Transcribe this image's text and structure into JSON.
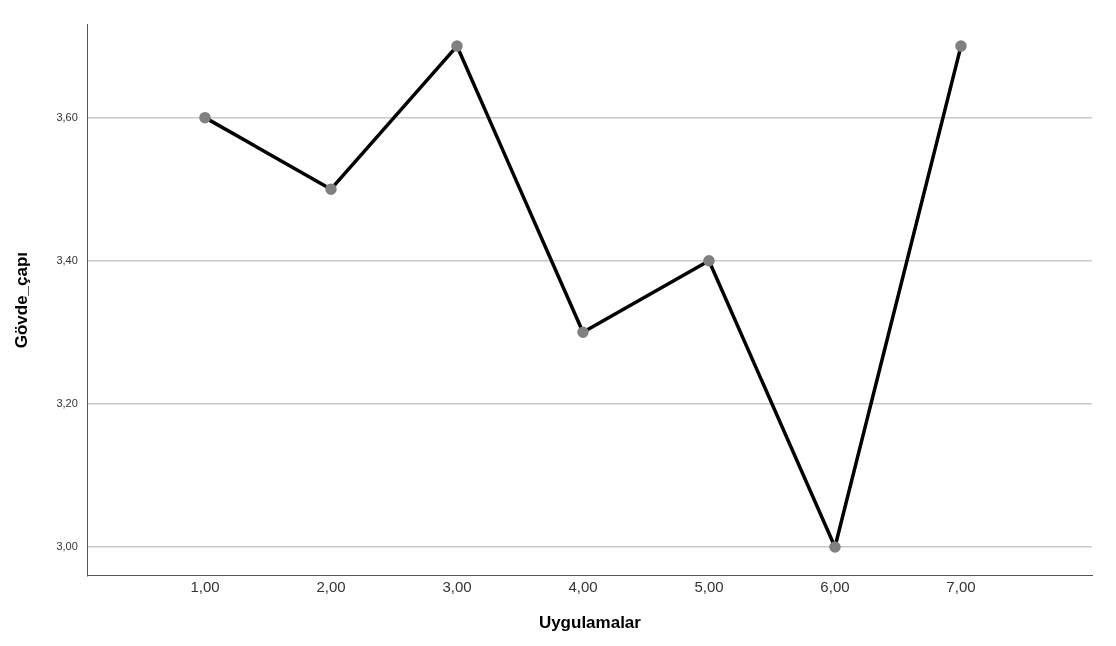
{
  "chart_data": {
    "type": "line",
    "xlabel": "Uygulamalar",
    "ylabel": "Gövde_çapı",
    "x": [
      1,
      2,
      3,
      4,
      5,
      6,
      7
    ],
    "series": [
      {
        "color": "#000000",
        "values": [
          3.6,
          3.5,
          3.7,
          3.3,
          3.4,
          3.0,
          3.7
        ]
      }
    ],
    "xlim": [
      0.07,
      8.04
    ],
    "ylim": [
      2.96,
      3.73
    ],
    "xticks": [
      {
        "value": 1,
        "label": "1,00"
      },
      {
        "value": 2,
        "label": "2,00"
      },
      {
        "value": 3,
        "label": "3,00"
      },
      {
        "value": 4,
        "label": "4,00"
      },
      {
        "value": 5,
        "label": "5,00"
      },
      {
        "value": 6,
        "label": "6,00"
      },
      {
        "value": 7,
        "label": "7,00"
      }
    ],
    "yticks": [
      {
        "value": 3,
        "label": "3,00"
      },
      {
        "value": 3.2,
        "label": "3,20"
      },
      {
        "value": 3.4,
        "label": "3,40"
      },
      {
        "value": 3.6,
        "label": "3,60"
      }
    ],
    "grid": "y",
    "marker": "circle",
    "line_style": "solid",
    "legend": false
  }
}
